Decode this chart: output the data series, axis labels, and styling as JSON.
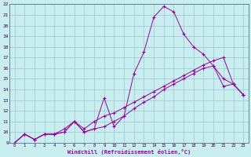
{
  "xlabel": "Windchill (Refroidissement éolien,°C)",
  "xlim": [
    -0.5,
    23.5
  ],
  "ylim": [
    9,
    22
  ],
  "xticks": [
    0,
    1,
    2,
    3,
    4,
    5,
    6,
    7,
    8,
    9,
    10,
    11,
    12,
    13,
    14,
    15,
    16,
    17,
    18,
    19,
    20,
    21,
    22,
    23
  ],
  "yticks": [
    9,
    10,
    11,
    12,
    13,
    14,
    15,
    16,
    17,
    18,
    19,
    20,
    21,
    22
  ],
  "bg_color": "#c8eef0",
  "line_color": "#990099",
  "grid_color": "#99bbcc",
  "curve1_x": [
    0,
    1,
    2,
    3,
    4,
    5,
    6,
    7,
    8,
    9,
    10,
    11,
    12,
    13,
    14,
    15,
    16,
    17,
    18,
    19,
    20,
    21,
    22,
    23
  ],
  "curve1_y": [
    9.0,
    9.8,
    9.3,
    9.8,
    9.8,
    10.0,
    11.0,
    10.0,
    10.3,
    13.2,
    10.5,
    11.5,
    15.5,
    17.5,
    20.8,
    21.8,
    21.3,
    19.2,
    18.0,
    17.3,
    16.2,
    14.3,
    14.5,
    13.5
  ],
  "curve2_x": [
    0,
    1,
    2,
    3,
    4,
    5,
    6,
    7,
    8,
    9,
    10,
    11,
    12,
    13,
    14,
    15,
    16,
    17,
    18,
    19,
    20,
    21,
    22,
    23
  ],
  "curve2_y": [
    9.0,
    9.8,
    9.3,
    9.8,
    9.8,
    10.0,
    11.0,
    10.0,
    10.3,
    10.5,
    11.0,
    11.5,
    12.2,
    12.8,
    13.3,
    14.0,
    14.5,
    15.0,
    15.5,
    16.0,
    16.2,
    15.0,
    14.5,
    13.5
  ],
  "curve3_x": [
    0,
    1,
    2,
    3,
    4,
    5,
    6,
    7,
    8,
    9,
    10,
    11,
    12,
    13,
    14,
    15,
    16,
    17,
    18,
    19,
    20,
    21,
    22,
    23
  ],
  "curve3_y": [
    9.0,
    9.8,
    9.3,
    9.8,
    9.8,
    10.3,
    11.0,
    10.3,
    11.0,
    11.5,
    11.8,
    12.3,
    12.8,
    13.3,
    13.8,
    14.3,
    14.8,
    15.3,
    15.8,
    16.3,
    16.7,
    17.0,
    14.5,
    13.5
  ]
}
